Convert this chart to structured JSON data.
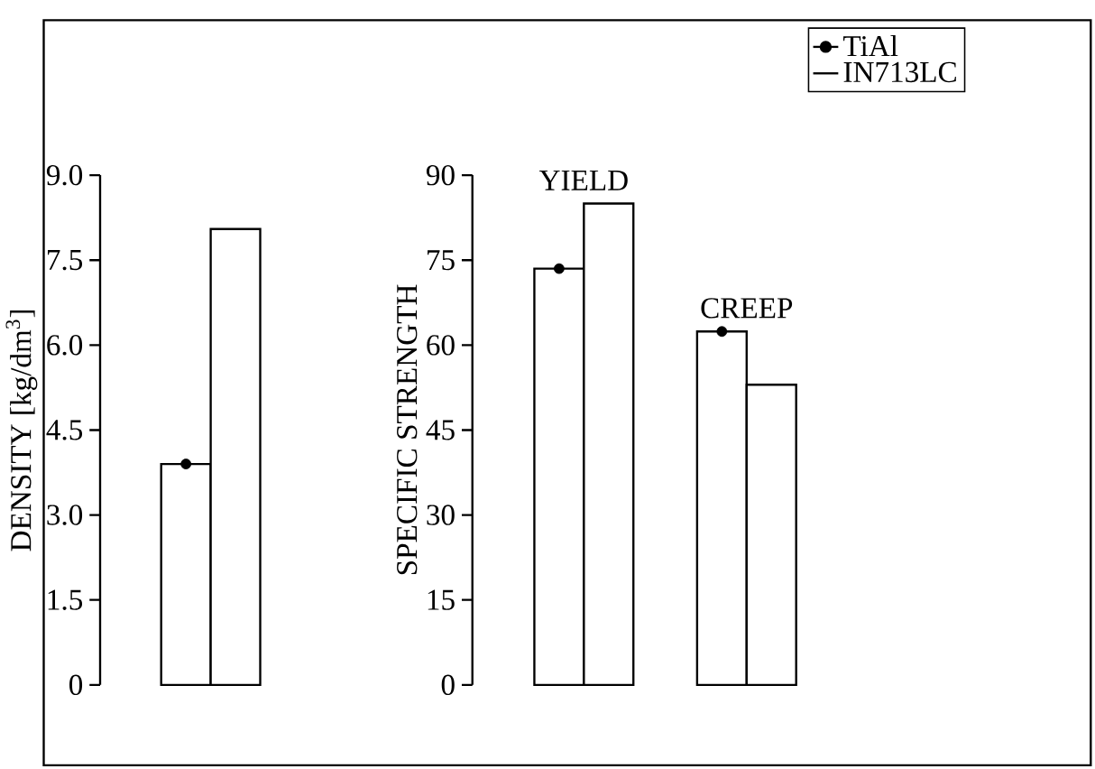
{
  "chart_data": [
    {
      "type": "bar",
      "ylabel": "DENSITY [kg/dm$^{3}$]",
      "categories": [
        null
      ],
      "series": [
        {
          "color": "#ffffff",
          "marker": "circle",
          "values": [
            3.9
          ]
        },
        {
          "color": "#ffffff",
          "marker": "none",
          "values": [
            8.05
          ]
        }
      ],
      "ylim": [
        0,
        9
      ],
      "yticks": [
        0,
        1.5,
        {
          "value": 3,
          "label": "3.0"
        },
        4.5,
        {
          "value": 6,
          "label": "6.0"
        },
        7.5,
        {
          "value": 9,
          "label": "9.0"
        }
      ],
      "tick_labels": "y"
    },
    {
      "type": "bar",
      "ylabel": "SPECIFIC STRENGTH",
      "categories": [
        "YIELD",
        "CREEP"
      ],
      "series": [
        {
          "name": "TiAl",
          "color": "#ffffff",
          "marker": "circle",
          "values": [
            73.5,
            62.4
          ]
        },
        {
          "name": "IN713LC",
          "color": "#ffffff",
          "marker": "none",
          "values": [
            85,
            53
          ]
        }
      ],
      "ylim": [
        0,
        90
      ],
      "yticks": [
        0,
        15,
        30,
        45,
        60,
        75,
        90
      ],
      "legend": "top right"
    }
  ]
}
